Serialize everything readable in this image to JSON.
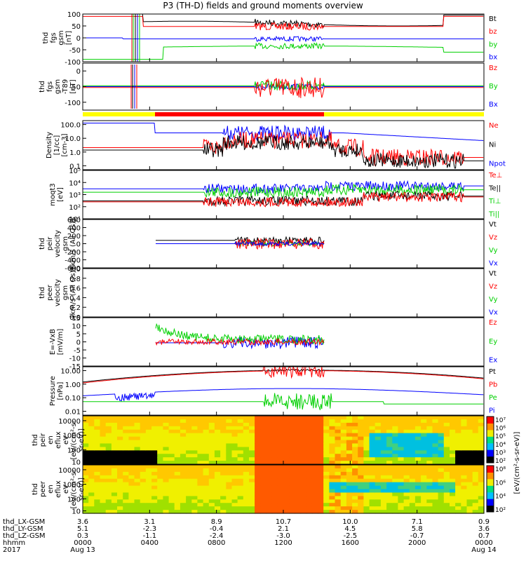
{
  "title": "P3 (TH-D) fields and ground moments overview",
  "colors": {
    "black": "#000000",
    "red": "#ff0000",
    "green": "#00d000",
    "blue": "#0000ff",
    "yellow": "#ffff00"
  },
  "chart_data": [
    {
      "type": "line",
      "ylabel": [
        "thd",
        "fgs",
        "gsm",
        "[nT]"
      ],
      "ylim": [
        -100,
        100
      ],
      "yticks": [
        "100",
        "50",
        "0",
        "-50",
        "-100"
      ],
      "legend": [
        {
          "label": "Bt",
          "color": "black"
        },
        {
          "label": "bz",
          "color": "red"
        },
        {
          "label": "by",
          "color": "green"
        },
        {
          "label": "bx",
          "color": "blue"
        }
      ]
    },
    {
      "type": "line",
      "ylabel": [
        "thd",
        "fgs",
        "gsm",
        "-T89",
        "[nT]"
      ],
      "ylim": [
        -125,
        25
      ],
      "yticks": [
        "0",
        "-50",
        "-100"
      ],
      "legend": [
        {
          "label": "Bz",
          "color": "red"
        },
        {
          "label": "By",
          "color": "green"
        },
        {
          "label": "Bx",
          "color": "blue"
        }
      ]
    },
    {
      "type": "line",
      "ylabel": [
        "Density",
        "[1/cc]",
        "[cm-3]"
      ],
      "log": true,
      "yticks": [
        "100.0",
        "10.0",
        "1.0",
        "0.1"
      ],
      "legend": [
        {
          "label": "Ne",
          "color": "red"
        },
        {
          "label": "Ni",
          "color": "black"
        },
        {
          "label": "Npot",
          "color": "blue"
        }
      ]
    },
    {
      "type": "line",
      "ylabel": [
        "moqt3",
        "[eV]"
      ],
      "log": true,
      "yticks": [
        "10⁵",
        "10⁴",
        "10³",
        "10²",
        "10¹"
      ],
      "legend": [
        {
          "label": "Te⊥",
          "color": "red"
        },
        {
          "label": "Te||",
          "color": "black"
        },
        {
          "label": "Ti⊥",
          "color": "green"
        },
        {
          "label": "Ti||",
          "color": "green"
        }
      ]
    },
    {
      "type": "line",
      "ylabel": [
        "thd",
        "peir",
        "velocity",
        "gsm",
        "[km/s (All Qs)]"
      ],
      "ylim": [
        -600,
        600
      ],
      "yticks": [
        "600",
        "400",
        "200",
        "0",
        "-200",
        "-400",
        "-600"
      ],
      "legend": [
        {
          "label": "Vt",
          "color": "black"
        },
        {
          "label": "Vz",
          "color": "red"
        },
        {
          "label": "Vy",
          "color": "green"
        },
        {
          "label": "Vx",
          "color": "blue"
        }
      ]
    },
    {
      "type": "line",
      "ylabel": [
        "thd",
        "peer",
        "velocity",
        "gsm",
        "[km/s (All Qs)]"
      ],
      "ylim": [
        0,
        1
      ],
      "yticks": [
        "1.0",
        "0.8",
        "0.6",
        "0.4",
        "0.2",
        "0.0"
      ],
      "legend": [
        {
          "label": "Vt",
          "color": "black"
        },
        {
          "label": "Vz",
          "color": "red"
        },
        {
          "label": "Vy",
          "color": "green"
        },
        {
          "label": "Vx",
          "color": "blue"
        }
      ]
    },
    {
      "type": "line",
      "ylabel": [
        "E=-VxB",
        "[mV/m]"
      ],
      "ylim": [
        -15,
        15
      ],
      "yticks": [
        "15",
        "10",
        "5",
        "0",
        "-5",
        "-10",
        "-15"
      ],
      "legend": [
        {
          "label": "Ez",
          "color": "red"
        },
        {
          "label": "Ey",
          "color": "green"
        },
        {
          "label": "Ex",
          "color": "blue"
        }
      ]
    },
    {
      "type": "line",
      "ylabel": [
        "Pressure",
        "[nPa]"
      ],
      "log": true,
      "yticks": [
        "10.00",
        "1.00",
        "0.10",
        "0.01"
      ],
      "legend": [
        {
          "label": "Pt",
          "color": "black"
        },
        {
          "label": "Pb",
          "color": "red"
        },
        {
          "label": "Pe",
          "color": "green"
        },
        {
          "label": "Pi",
          "color": "blue"
        }
      ]
    },
    {
      "type": "heatmap",
      "ylabel": [
        "thd",
        "peir",
        "en",
        "eflux",
        "eV",
        "[eV/(cm²-s-",
        "sr-eV)]"
      ],
      "yticks": [
        "10000",
        "1000",
        "100",
        "10"
      ]
    },
    {
      "type": "heatmap",
      "ylabel": [
        "thd",
        "peer",
        "en",
        "eflux",
        "eV",
        "[eV/(cm²-s-",
        "sr-eV)]"
      ],
      "yticks": [
        "10000",
        "1000",
        "100",
        "10"
      ]
    }
  ],
  "colorbar": {
    "label": "[eV/(cm²-s-sr-eV)]",
    "ticks_top": [
      "10⁷",
      "10⁶",
      "10⁵",
      "10⁴",
      "10³",
      "10²"
    ],
    "ticks_bottom": [
      "10⁸",
      "10⁶",
      "10⁴",
      "10²"
    ]
  },
  "xaxis": {
    "rows": [
      {
        "label": "thd_LX-GSM",
        "values": [
          "3.6",
          "3.1",
          "8.9",
          "10.7",
          "10.0",
          "7.1",
          "0.9"
        ]
      },
      {
        "label": "thd_LY-GSM",
        "values": [
          "5.1",
          "-2.3",
          "-0.4",
          "2.1",
          "4.5",
          "5.8",
          "3.6"
        ]
      },
      {
        "label": "thd_LZ-GSM",
        "values": [
          "0.3",
          "-1.1",
          "-2.4",
          "-3.0",
          "-2.5",
          "-0.7",
          "0.7"
        ]
      },
      {
        "label": "hhmm",
        "values": [
          "0000",
          "0400",
          "0800",
          "1200",
          "1600",
          "2000",
          "0000"
        ]
      }
    ],
    "year": "2017",
    "date_start": "Aug 13",
    "date_end": "Aug 14"
  }
}
